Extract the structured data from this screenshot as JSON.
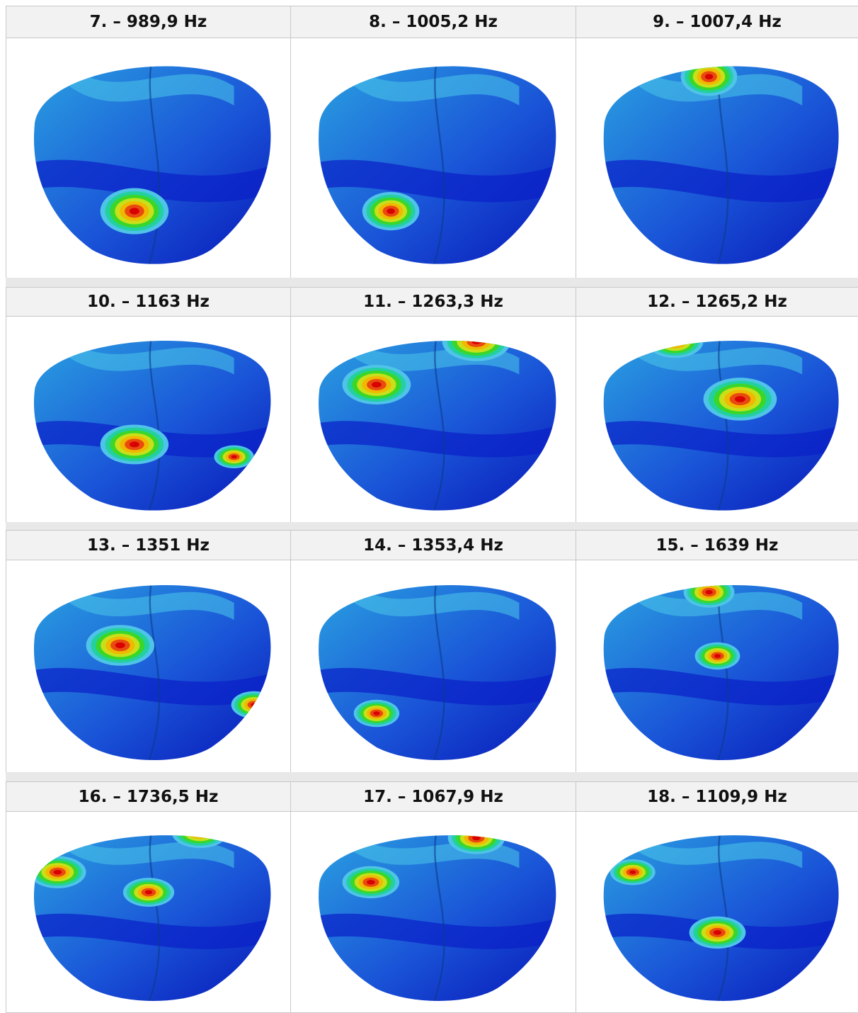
{
  "table": {
    "rows": [
      [
        "7. – 989,9 Hz",
        "8. – 1005,2 Hz",
        "9. – 1007,4 Hz"
      ],
      [
        "10. – 1163 Hz",
        "11. – 1263,3 Hz",
        "12. – 1265,2 Hz"
      ],
      [
        "13. – 1351 Hz",
        "14. – 1353,4 Hz",
        "15. – 1639 Hz"
      ],
      [
        "16. – 1736,5 Hz",
        "17. – 1067,9 Hz",
        "18. – 1109,9 Hz"
      ]
    ]
  }
}
